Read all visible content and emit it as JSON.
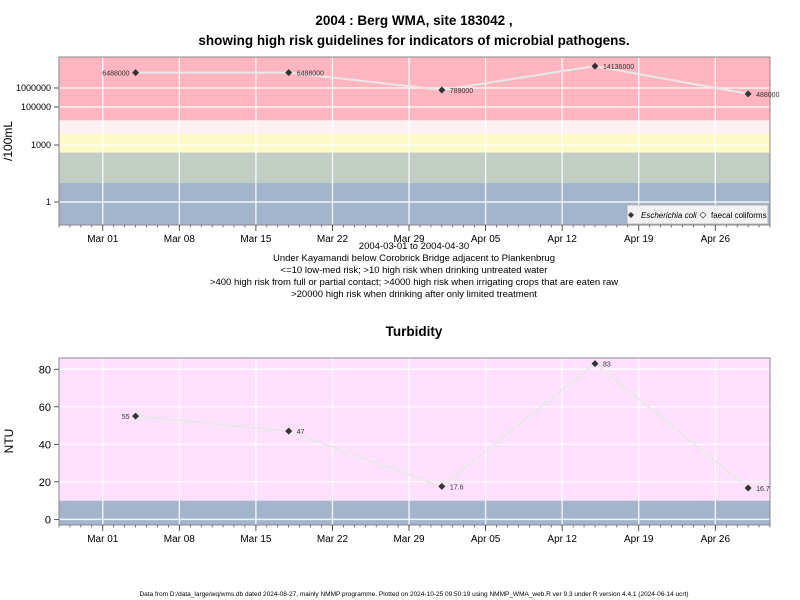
{
  "title": {
    "line1": "2004 : Berg WMA, site 183042 ,",
    "line2": "showing high risk guidelines for indicators of microbial pathogens."
  },
  "x_ticks": [
    "Mar 01",
    "Mar 08",
    "Mar 15",
    "Mar 22",
    "Mar 29",
    "Apr 05",
    "Apr 12",
    "Apr 19",
    "Apr 26"
  ],
  "top_caption": [
    "2004-03-01 to 2004-04-30",
    "Under Kayamandi below Corobrick Bridge adjacent to Plankenbrug",
    "<=10 low-med risk; >10 high risk when drinking untreated water",
    ">400 high risk from full or partial contact; >4000 high risk when irrigating crops that are eaten raw",
    ">20000 high risk when drinking after only limited treatment"
  ],
  "footer": "Data from D:/data_large/wq/wms.db dated 2024-08-27, mainly NMMP programme. Plotted on 2024-10-25 09:50:19 using NMMP_WMA_web.R ver 9.3 under R version 4.4.1 (2024-06-14 ucrt)",
  "colors": {
    "pink": "#ffb6c1",
    "white_band": "#fef1f4",
    "yellow": "#fdfac8",
    "green": "#c2cdc3",
    "blue": "#a2b5cd",
    "turb_pink": "#ffe1ff",
    "line": "#e8e8e8",
    "point": "#333333"
  },
  "chart_data": [
    {
      "type": "line",
      "title": "",
      "xlabel": "",
      "ylabel": "/100mL",
      "y_scale": "log10",
      "y_ticks": [
        1,
        1000,
        100000,
        1000000
      ],
      "y_tick_labels": [
        "1",
        "1000",
        "100000",
        "1000000"
      ],
      "xlim": [
        "2004-02-26",
        "2004-05-01"
      ],
      "risk_bands": [
        {
          "from": 0,
          "to": 10,
          "color": "blue"
        },
        {
          "from": 10,
          "to": 400,
          "color": "green"
        },
        {
          "from": 400,
          "to": 4000,
          "color": "yellow"
        },
        {
          "from": 4000,
          "to": 20000,
          "color": "white_band"
        },
        {
          "from": 20000,
          "to": null,
          "color": "pink"
        }
      ],
      "legend": {
        "position": "bottom-right",
        "entries": [
          "Escherichia coli",
          "faecal coliforms"
        ]
      },
      "series": [
        {
          "name": "Escherichia coli",
          "x": [
            "2004-03-04",
            "2004-03-18",
            "2004-04-01",
            "2004-04-15",
            "2004-04-29"
          ],
          "y": [
            6488000,
            6488000,
            789000,
            14136000,
            488000
          ],
          "labels": [
            "6488000",
            "6488000",
            "789000",
            "14136000",
            "488000"
          ]
        }
      ]
    },
    {
      "type": "line",
      "title": "Turbidity",
      "xlabel": "",
      "ylabel": "NTU",
      "ylim": [
        -3,
        86
      ],
      "y_ticks": [
        0,
        20,
        40,
        60,
        80
      ],
      "y_tick_labels": [
        "0",
        "20",
        "40",
        "60",
        "80"
      ],
      "xlim": [
        "2004-02-26",
        "2004-05-01"
      ],
      "risk_bands": [
        {
          "from": -3,
          "to": 10,
          "color": "blue"
        },
        {
          "from": 10,
          "to": 86,
          "color": "turb_pink"
        }
      ],
      "series": [
        {
          "name": "",
          "x": [
            "2004-03-04",
            "2004-03-18",
            "2004-04-01",
            "2004-04-15",
            "2004-04-29"
          ],
          "y": [
            55,
            47,
            17.6,
            83,
            16.7
          ],
          "labels": [
            "55",
            "47",
            "17.6",
            "83",
            "16.7"
          ]
        }
      ]
    }
  ]
}
